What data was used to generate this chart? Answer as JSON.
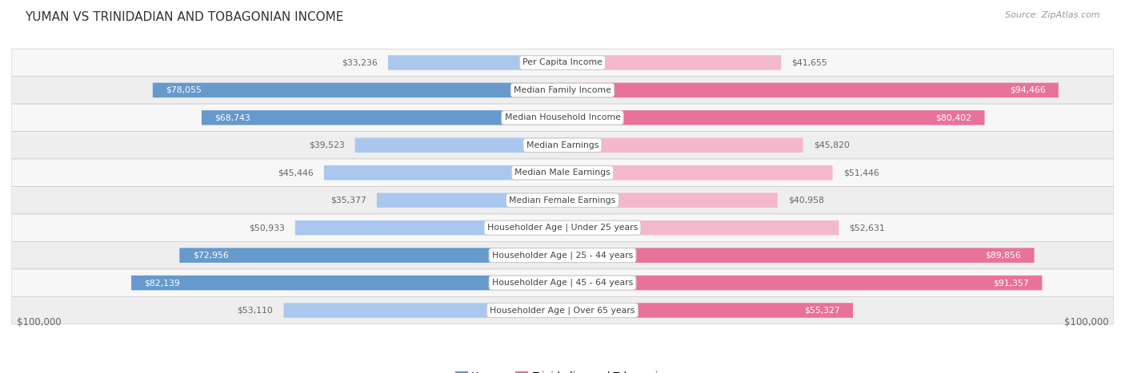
{
  "title": "YUMAN VS TRINIDADIAN AND TOBAGONIAN INCOME",
  "source": "Source: ZipAtlas.com",
  "categories": [
    "Per Capita Income",
    "Median Family Income",
    "Median Household Income",
    "Median Earnings",
    "Median Male Earnings",
    "Median Female Earnings",
    "Householder Age | Under 25 years",
    "Householder Age | 25 - 44 years",
    "Householder Age | 45 - 64 years",
    "Householder Age | Over 65 years"
  ],
  "yuman_values": [
    33236,
    78055,
    68743,
    39523,
    45446,
    35377,
    50933,
    72956,
    82139,
    53110
  ],
  "trini_values": [
    41655,
    94466,
    80402,
    45820,
    51446,
    40958,
    52631,
    89856,
    91357,
    55327
  ],
  "yuman_color_light": "#aac8ee",
  "yuman_color_dark": "#6699cc",
  "trini_color_light": "#f4b8cc",
  "trini_color_dark": "#e8729a",
  "label_color_inside": "#ffffff",
  "label_color_outside": "#666666",
  "max_value": 100000,
  "bar_height": 0.52,
  "row_colors": [
    "#f7f7f7",
    "#eeeeee"
  ],
  "center_label_text": "#444444",
  "label_yuman": "Yuman",
  "label_trini": "Trinidadian and Tobagonian",
  "axis_label_left": "$100,000",
  "axis_label_right": "$100,000",
  "inside_label_threshold": 55000
}
